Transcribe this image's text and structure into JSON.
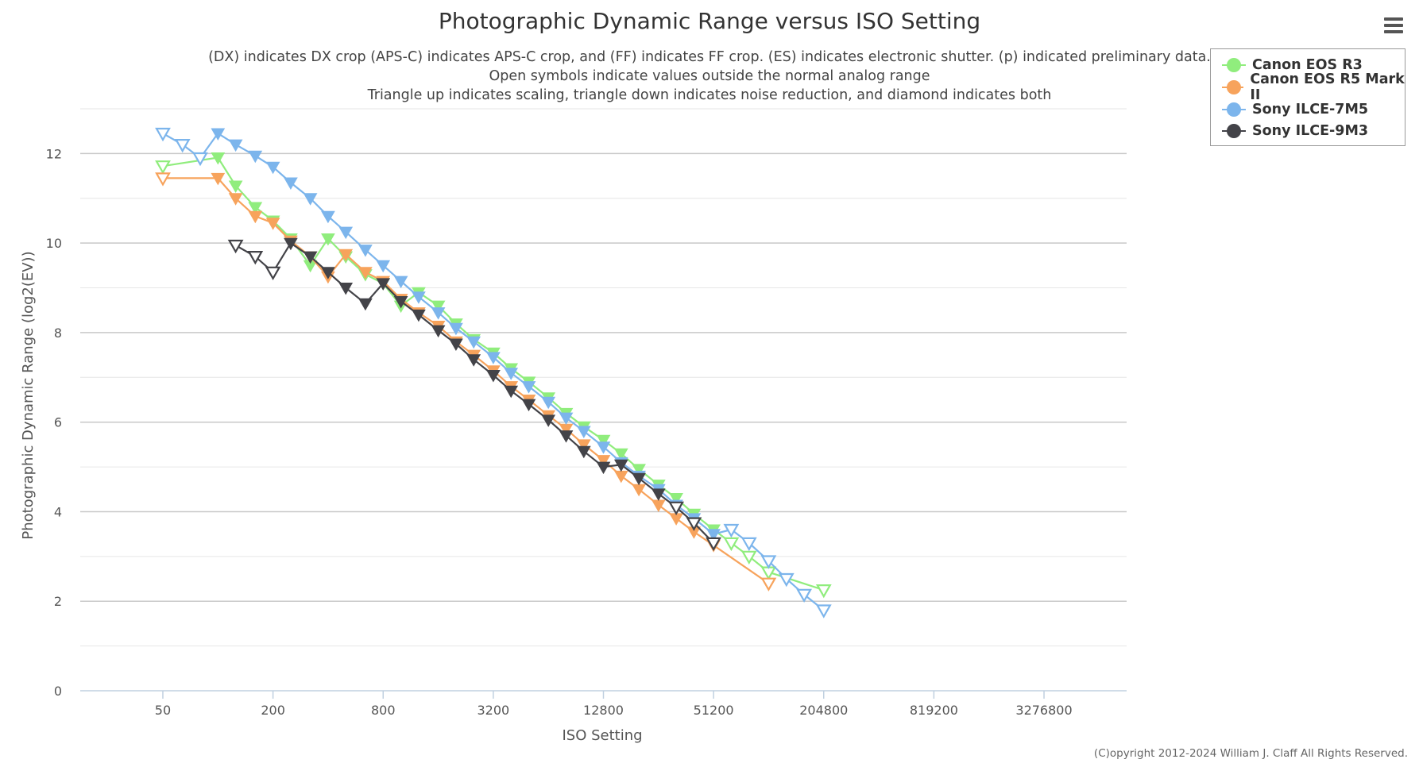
{
  "chart_data": {
    "type": "line",
    "title": "Photographic Dynamic Range versus ISO Setting",
    "subtitle_lines": [
      "(DX) indicates DX crop (APS-C) indicates APS-C crop, and (FF) indicates FF crop. (ES) indicates electronic shutter. (p) indicated preliminary data.",
      "Open symbols indicate values outside the normal analog range",
      "Triangle up indicates scaling, triangle down indicates noise reduction, and diamond indicates both"
    ],
    "xlabel": "ISO Setting",
    "ylabel": "Photographic Dynamic Range (log2(EV))",
    "x_scale": "log2",
    "x_ticks": [
      50,
      200,
      800,
      3200,
      12800,
      51200,
      204800,
      819200,
      3276800
    ],
    "x_tick_labels": [
      "50",
      "200",
      "800",
      "3200",
      "12800",
      "51200",
      "204800",
      "819200",
      "3276800"
    ],
    "xlim_log2_stops": [
      -1.5,
      17.5
    ],
    "y_ticks": [
      0,
      2,
      4,
      6,
      8,
      10,
      12
    ],
    "y_tick_labels": [
      "0",
      "2",
      "4",
      "6",
      "8",
      "10",
      "12"
    ],
    "ylim": [
      0,
      13
    ],
    "legend_position": "top-right",
    "series": [
      {
        "name": "Canon EOS R3",
        "color": "#90ed7d",
        "points": [
          {
            "x": 50,
            "y": 11.72,
            "open": true
          },
          {
            "x": 100,
            "y": 11.91,
            "open": false
          },
          {
            "x": 125,
            "y": 11.28,
            "open": false
          },
          {
            "x": 160,
            "y": 10.8,
            "open": false
          },
          {
            "x": 200,
            "y": 10.5,
            "open": false
          },
          {
            "x": 250,
            "y": 10.1,
            "open": false
          },
          {
            "x": 320,
            "y": 9.5,
            "open": false
          },
          {
            "x": 400,
            "y": 10.1,
            "open": false
          },
          {
            "x": 500,
            "y": 9.7,
            "open": false
          },
          {
            "x": 640,
            "y": 9.3,
            "open": false
          },
          {
            "x": 800,
            "y": 9.1,
            "open": false
          },
          {
            "x": 1000,
            "y": 8.6,
            "open": false
          },
          {
            "x": 1250,
            "y": 8.9,
            "open": false
          },
          {
            "x": 1600,
            "y": 8.6,
            "open": false
          },
          {
            "x": 2000,
            "y": 8.2,
            "open": false
          },
          {
            "x": 2500,
            "y": 7.85,
            "open": false
          },
          {
            "x": 3200,
            "y": 7.55,
            "open": false
          },
          {
            "x": 4000,
            "y": 7.2,
            "open": false
          },
          {
            "x": 5000,
            "y": 6.9,
            "open": false
          },
          {
            "x": 6400,
            "y": 6.55,
            "open": false
          },
          {
            "x": 8000,
            "y": 6.2,
            "open": false
          },
          {
            "x": 10000,
            "y": 5.9,
            "open": false
          },
          {
            "x": 12800,
            "y": 5.6,
            "open": false
          },
          {
            "x": 16000,
            "y": 5.3,
            "open": false
          },
          {
            "x": 20000,
            "y": 4.95,
            "open": false
          },
          {
            "x": 25600,
            "y": 4.6,
            "open": false
          },
          {
            "x": 32000,
            "y": 4.3,
            "open": false
          },
          {
            "x": 40000,
            "y": 3.95,
            "open": false
          },
          {
            "x": 51200,
            "y": 3.6,
            "open": false
          },
          {
            "x": 64000,
            "y": 3.3,
            "open": true
          },
          {
            "x": 80000,
            "y": 3.0,
            "open": true
          },
          {
            "x": 102400,
            "y": 2.65,
            "open": true
          },
          {
            "x": 204800,
            "y": 2.25,
            "open": true
          }
        ]
      },
      {
        "name": "Canon EOS R5 Mark II",
        "color": "#f7a35c",
        "points": [
          {
            "x": 50,
            "y": 11.45,
            "open": true
          },
          {
            "x": 100,
            "y": 11.45,
            "open": false
          },
          {
            "x": 125,
            "y": 11.0,
            "open": false
          },
          {
            "x": 160,
            "y": 10.6,
            "open": false
          },
          {
            "x": 200,
            "y": 10.45,
            "open": false
          },
          {
            "x": 250,
            "y": 10.05,
            "open": false
          },
          {
            "x": 320,
            "y": 9.7,
            "open": false
          },
          {
            "x": 400,
            "y": 9.25,
            "open": false
          },
          {
            "x": 500,
            "y": 9.75,
            "open": false
          },
          {
            "x": 640,
            "y": 9.35,
            "open": false
          },
          {
            "x": 800,
            "y": 9.15,
            "open": false
          },
          {
            "x": 1000,
            "y": 8.75,
            "open": false
          },
          {
            "x": 1250,
            "y": 8.45,
            "open": false
          },
          {
            "x": 1600,
            "y": 8.15,
            "open": false
          },
          {
            "x": 2000,
            "y": 7.8,
            "open": false
          },
          {
            "x": 2500,
            "y": 7.5,
            "open": false
          },
          {
            "x": 3200,
            "y": 7.15,
            "open": false
          },
          {
            "x": 4000,
            "y": 6.8,
            "open": false
          },
          {
            "x": 5000,
            "y": 6.5,
            "open": false
          },
          {
            "x": 6400,
            "y": 6.15,
            "open": false
          },
          {
            "x": 8000,
            "y": 5.85,
            "open": false
          },
          {
            "x": 10000,
            "y": 5.5,
            "open": false
          },
          {
            "x": 12800,
            "y": 5.15,
            "open": false
          },
          {
            "x": 16000,
            "y": 4.8,
            "open": false
          },
          {
            "x": 20000,
            "y": 4.5,
            "open": false
          },
          {
            "x": 25600,
            "y": 4.15,
            "open": false
          },
          {
            "x": 32000,
            "y": 3.85,
            "open": false
          },
          {
            "x": 40000,
            "y": 3.55,
            "open": false
          },
          {
            "x": 51200,
            "y": 3.25,
            "open": false
          },
          {
            "x": 102400,
            "y": 2.4,
            "open": true
          }
        ]
      },
      {
        "name": "Sony ILCE-7M5",
        "color": "#7cb5ec",
        "points": [
          {
            "x": 50,
            "y": 12.45,
            "open": true
          },
          {
            "x": 64,
            "y": 12.2,
            "open": true
          },
          {
            "x": 80,
            "y": 11.9,
            "open": true
          },
          {
            "x": 100,
            "y": 12.45,
            "open": false
          },
          {
            "x": 125,
            "y": 12.2,
            "open": false
          },
          {
            "x": 160,
            "y": 11.95,
            "open": false
          },
          {
            "x": 200,
            "y": 11.7,
            "open": false
          },
          {
            "x": 250,
            "y": 11.35,
            "open": false
          },
          {
            "x": 320,
            "y": 11.0,
            "open": false
          },
          {
            "x": 400,
            "y": 10.6,
            "open": false
          },
          {
            "x": 500,
            "y": 10.25,
            "open": false
          },
          {
            "x": 640,
            "y": 9.85,
            "open": false
          },
          {
            "x": 800,
            "y": 9.5,
            "open": false
          },
          {
            "x": 1000,
            "y": 9.15,
            "open": false
          },
          {
            "x": 1250,
            "y": 8.8,
            "open": false
          },
          {
            "x": 1600,
            "y": 8.45,
            "open": false
          },
          {
            "x": 2000,
            "y": 8.1,
            "open": false
          },
          {
            "x": 2500,
            "y": 7.8,
            "open": false
          },
          {
            "x": 3200,
            "y": 7.45,
            "open": false
          },
          {
            "x": 4000,
            "y": 7.1,
            "open": false
          },
          {
            "x": 5000,
            "y": 6.8,
            "open": false
          },
          {
            "x": 6400,
            "y": 6.45,
            "open": false
          },
          {
            "x": 8000,
            "y": 6.1,
            "open": false
          },
          {
            "x": 10000,
            "y": 5.8,
            "open": false
          },
          {
            "x": 12800,
            "y": 5.45,
            "open": false
          },
          {
            "x": 16000,
            "y": 5.1,
            "open": false
          },
          {
            "x": 20000,
            "y": 4.8,
            "open": false
          },
          {
            "x": 25600,
            "y": 4.5,
            "open": false
          },
          {
            "x": 32000,
            "y": 4.15,
            "open": false
          },
          {
            "x": 40000,
            "y": 3.85,
            "open": false
          },
          {
            "x": 51200,
            "y": 3.5,
            "open": false
          },
          {
            "x": 64000,
            "y": 3.6,
            "open": true
          },
          {
            "x": 80000,
            "y": 3.3,
            "open": true
          },
          {
            "x": 102400,
            "y": 2.9,
            "open": true
          },
          {
            "x": 128000,
            "y": 2.5,
            "open": true
          },
          {
            "x": 160000,
            "y": 2.15,
            "open": true
          },
          {
            "x": 204800,
            "y": 1.8,
            "open": true
          }
        ]
      },
      {
        "name": "Sony ILCE-9M3",
        "color": "#434348",
        "points": [
          {
            "x": 125,
            "y": 9.95,
            "open": true
          },
          {
            "x": 160,
            "y": 9.7,
            "open": true
          },
          {
            "x": 200,
            "y": 9.35,
            "open": true
          },
          {
            "x": 250,
            "y": 10.0,
            "open": false
          },
          {
            "x": 320,
            "y": 9.7,
            "open": false
          },
          {
            "x": 400,
            "y": 9.35,
            "open": false
          },
          {
            "x": 500,
            "y": 9.0,
            "open": false
          },
          {
            "x": 640,
            "y": 8.65,
            "open": false
          },
          {
            "x": 800,
            "y": 9.1,
            "open": false
          },
          {
            "x": 1000,
            "y": 8.7,
            "open": false
          },
          {
            "x": 1250,
            "y": 8.4,
            "open": false
          },
          {
            "x": 1600,
            "y": 8.05,
            "open": false
          },
          {
            "x": 2000,
            "y": 7.75,
            "open": false
          },
          {
            "x": 2500,
            "y": 7.4,
            "open": false
          },
          {
            "x": 3200,
            "y": 7.05,
            "open": false
          },
          {
            "x": 4000,
            "y": 6.7,
            "open": false
          },
          {
            "x": 5000,
            "y": 6.4,
            "open": false
          },
          {
            "x": 6400,
            "y": 6.05,
            "open": false
          },
          {
            "x": 8000,
            "y": 5.7,
            "open": false
          },
          {
            "x": 10000,
            "y": 5.35,
            "open": false
          },
          {
            "x": 12800,
            "y": 5.0,
            "open": false
          },
          {
            "x": 16000,
            "y": 5.05,
            "open": false
          },
          {
            "x": 20000,
            "y": 4.75,
            "open": false
          },
          {
            "x": 25600,
            "y": 4.4,
            "open": false
          },
          {
            "x": 32000,
            "y": 4.1,
            "open": true
          },
          {
            "x": 40000,
            "y": 3.75,
            "open": true
          },
          {
            "x": 51200,
            "y": 3.3,
            "open": true
          }
        ]
      }
    ]
  },
  "copyright": "(C)opyright 2012-2024 William J. Claff All Rights Reserved.",
  "icons": {
    "menu": "hamburger-menu-icon"
  }
}
